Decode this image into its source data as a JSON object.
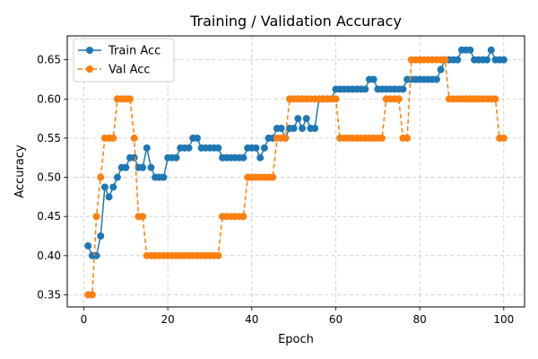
{
  "chart_data": {
    "type": "line",
    "title": "Training / Validation Accuracy",
    "xlabel": "Epoch",
    "ylabel": "Accuracy",
    "xlim": [
      -3.95,
      104.95
    ],
    "ylim": [
      0.3345,
      0.6805
    ],
    "xticks": [
      0,
      20,
      40,
      60,
      80,
      100
    ],
    "yticks": [
      0.35,
      0.4,
      0.45,
      0.5,
      0.55,
      0.6,
      0.65
    ],
    "ytick_labels": [
      "0.35",
      "0.40",
      "0.45",
      "0.50",
      "0.55",
      "0.60",
      "0.65"
    ],
    "grid": true,
    "legend_position": "upper-left",
    "x": [
      1,
      2,
      3,
      4,
      5,
      6,
      7,
      8,
      9,
      10,
      11,
      12,
      13,
      14,
      15,
      16,
      17,
      18,
      19,
      20,
      21,
      22,
      23,
      24,
      25,
      26,
      27,
      28,
      29,
      30,
      31,
      32,
      33,
      34,
      35,
      36,
      37,
      38,
      39,
      40,
      41,
      42,
      43,
      44,
      45,
      46,
      47,
      48,
      49,
      50,
      51,
      52,
      53,
      54,
      55,
      56,
      57,
      58,
      59,
      60,
      61,
      62,
      63,
      64,
      65,
      66,
      67,
      68,
      69,
      70,
      71,
      72,
      73,
      74,
      75,
      76,
      77,
      78,
      79,
      80,
      81,
      82,
      83,
      84,
      85,
      86,
      87,
      88,
      89,
      90,
      91,
      92,
      93,
      94,
      95,
      96,
      97,
      98,
      99,
      100
    ],
    "series": [
      {
        "name": "Train Acc",
        "color": "#1f77b4",
        "linestyle": "solid",
        "marker": "circle",
        "values": [
          0.4125,
          0.4,
          0.4,
          0.425,
          0.4875,
          0.475,
          0.4875,
          0.5,
          0.5125,
          0.5125,
          0.525,
          0.525,
          0.5125,
          0.5125,
          0.5375,
          0.5125,
          0.5,
          0.5,
          0.5,
          0.525,
          0.525,
          0.525,
          0.5375,
          0.5375,
          0.5375,
          0.55,
          0.55,
          0.5375,
          0.5375,
          0.5375,
          0.5375,
          0.5375,
          0.525,
          0.525,
          0.525,
          0.525,
          0.525,
          0.525,
          0.5375,
          0.5375,
          0.5375,
          0.525,
          0.5375,
          0.55,
          0.55,
          0.5625,
          0.5625,
          0.55,
          0.5625,
          0.5625,
          0.575,
          0.5625,
          0.575,
          0.5625,
          0.5625,
          0.6,
          0.6,
          0.6,
          0.6,
          0.6125,
          0.6125,
          0.6125,
          0.6125,
          0.6125,
          0.6125,
          0.6125,
          0.6125,
          0.625,
          0.625,
          0.6125,
          0.6125,
          0.6125,
          0.6125,
          0.6125,
          0.6125,
          0.6125,
          0.625,
          0.625,
          0.625,
          0.625,
          0.625,
          0.625,
          0.625,
          0.625,
          0.6375,
          0.65,
          0.65,
          0.65,
          0.65,
          0.6625,
          0.6625,
          0.6625,
          0.65,
          0.65,
          0.65,
          0.65,
          0.6625,
          0.65,
          0.65,
          0.65
        ]
      },
      {
        "name": "Val Acc",
        "color": "#ff7f0e",
        "linestyle": "dashed",
        "marker": "circle",
        "values": [
          0.35,
          0.35,
          0.45,
          0.5,
          0.55,
          0.55,
          0.55,
          0.6,
          0.6,
          0.6,
          0.6,
          0.55,
          0.45,
          0.45,
          0.4,
          0.4,
          0.4,
          0.4,
          0.4,
          0.4,
          0.4,
          0.4,
          0.4,
          0.4,
          0.4,
          0.4,
          0.4,
          0.4,
          0.4,
          0.4,
          0.4,
          0.4,
          0.45,
          0.45,
          0.45,
          0.45,
          0.45,
          0.45,
          0.5,
          0.5,
          0.5,
          0.5,
          0.5,
          0.5,
          0.5,
          0.55,
          0.55,
          0.55,
          0.6,
          0.6,
          0.6,
          0.6,
          0.6,
          0.6,
          0.6,
          0.6,
          0.6,
          0.6,
          0.6,
          0.6,
          0.55,
          0.55,
          0.55,
          0.55,
          0.55,
          0.55,
          0.55,
          0.55,
          0.55,
          0.55,
          0.55,
          0.6,
          0.6,
          0.6,
          0.6,
          0.55,
          0.55,
          0.65,
          0.65,
          0.65,
          0.65,
          0.65,
          0.65,
          0.65,
          0.65,
          0.65,
          0.6,
          0.6,
          0.6,
          0.6,
          0.6,
          0.6,
          0.6,
          0.6,
          0.6,
          0.6,
          0.6,
          0.6,
          0.55,
          0.55
        ]
      }
    ]
  }
}
